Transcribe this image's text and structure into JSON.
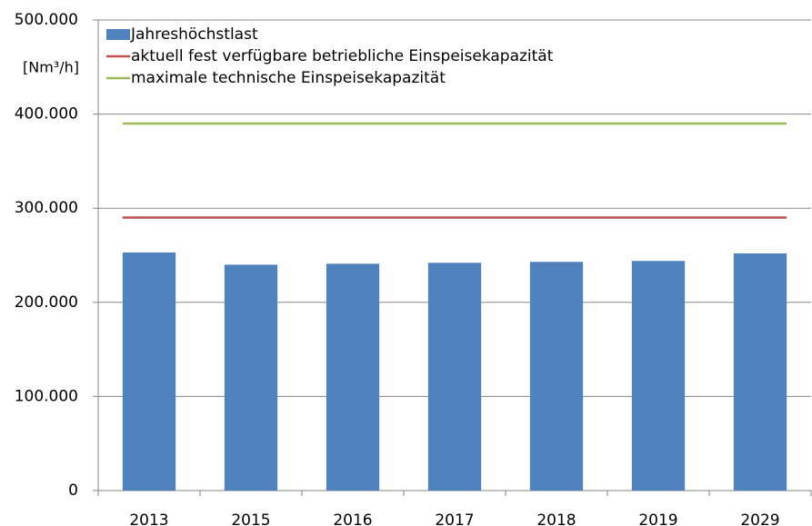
{
  "chart_data": {
    "type": "bar",
    "y_label": "[Nm³/h]",
    "categories": [
      "2013",
      "2015",
      "2016",
      "2017",
      "2018",
      "2019",
      "2029"
    ],
    "series": [
      {
        "name": "Jahreshöchstlast",
        "type": "bar",
        "color": "#4f81bd",
        "values": [
          253000,
          240000,
          241000,
          242000,
          243000,
          244000,
          252000
        ]
      },
      {
        "name": "aktuell fest verfügbare betriebliche Einspeisekapazität",
        "type": "line",
        "color": "#c0504d",
        "values": [
          290000,
          290000,
          290000,
          290000,
          290000,
          290000,
          290000
        ]
      },
      {
        "name": "maximale technische Einspeisekapazität",
        "type": "line",
        "color": "#9bbb59",
        "values": [
          390000,
          390000,
          390000,
          390000,
          390000,
          390000,
          390000
        ]
      }
    ],
    "ylim": [
      0,
      500000
    ],
    "yticks": [
      0,
      {
        "value": 100000,
        "label": "100.000"
      },
      {
        "value": 200000,
        "label": "200.000"
      },
      {
        "value": 300000,
        "label": "300.000"
      },
      {
        "value": 400000,
        "label": "400.000"
      },
      {
        "value": 500000,
        "label": "500.000"
      }
    ],
    "grid": true,
    "legend": "top-left"
  }
}
